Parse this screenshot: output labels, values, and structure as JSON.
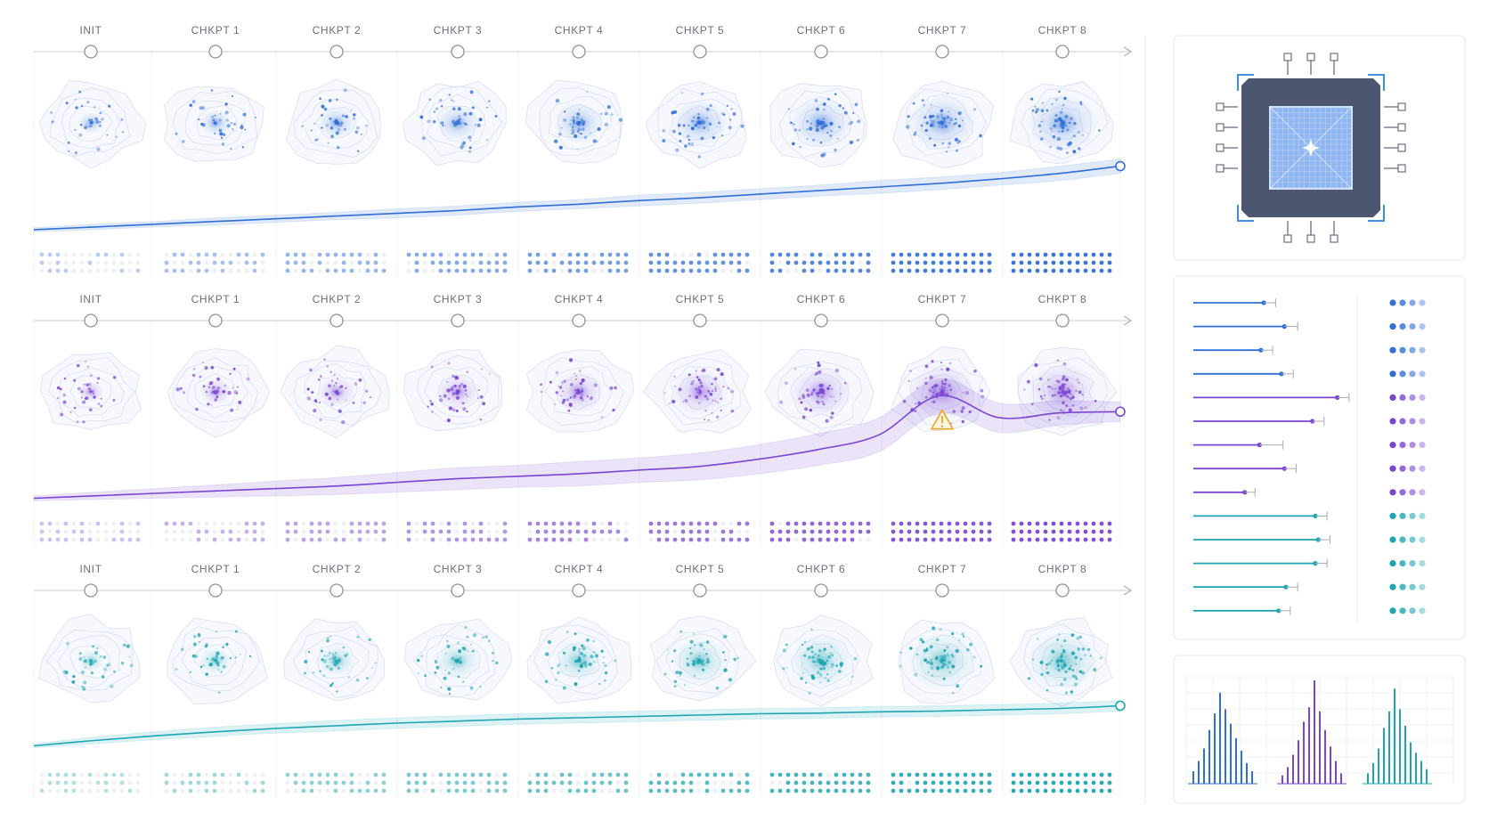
{
  "colors": {
    "blue": "#2f6fd6",
    "purple": "#7b45d3",
    "teal": "#1ea5b3",
    "warning": "#f0a420",
    "grid": "#e4e7ee",
    "chip_body": "#4d5670",
    "chip_die": "#8fb6f3"
  },
  "icons": {
    "warning": "warning-icon",
    "chip": "chip-icon"
  },
  "chart_data": [
    {
      "type": "line",
      "title": "",
      "xlabel": "",
      "ylabel": "",
      "categories": [
        "INIT",
        "CHKPT 1",
        "CHKPT 2",
        "CHKPT 3",
        "CHKPT 4",
        "CHKPT 5",
        "CHKPT 6",
        "CHKPT 7",
        "CHKPT 8"
      ],
      "x": [
        0,
        0.5,
        1,
        1.5,
        2,
        2.5,
        3,
        3.5,
        4,
        4.5,
        5,
        5.5,
        6,
        6.5,
        7,
        7.5,
        8,
        8.5,
        9
      ],
      "series": [
        {
          "color": "blue",
          "values": [
            0.04,
            0.07,
            0.1,
            0.13,
            0.16,
            0.19,
            0.22,
            0.25,
            0.29,
            0.32,
            0.36,
            0.39,
            0.43,
            0.47,
            0.51,
            0.55,
            0.6,
            0.66,
            0.74
          ],
          "band": [
            0.02,
            0.03,
            0.03,
            0.04,
            0.04,
            0.04,
            0.05,
            0.05,
            0.05,
            0.05,
            0.06,
            0.06,
            0.06,
            0.06,
            0.07,
            0.07,
            0.07,
            0.08,
            0.08
          ]
        }
      ],
      "ylim": [
        0,
        1
      ],
      "grid": true,
      "point_density": [
        0.25,
        0.35,
        0.45,
        0.55,
        0.65,
        0.75,
        0.85,
        0.95,
        1.0
      ]
    },
    {
      "type": "line",
      "title": "",
      "xlabel": "",
      "ylabel": "",
      "categories": [
        "INIT",
        "CHKPT 1",
        "CHKPT 2",
        "CHKPT 3",
        "CHKPT 4",
        "CHKPT 5",
        "CHKPT 6",
        "CHKPT 7",
        "CHKPT 8"
      ],
      "x": [
        0,
        0.5,
        1,
        1.5,
        2,
        2.5,
        3,
        3.5,
        4,
        4.5,
        5,
        5.5,
        6,
        6.5,
        7,
        7.5,
        8,
        8.5,
        9
      ],
      "series": [
        {
          "color": "purple",
          "values": [
            0.04,
            0.06,
            0.08,
            0.1,
            0.12,
            0.14,
            0.17,
            0.2,
            0.22,
            0.24,
            0.27,
            0.3,
            0.36,
            0.44,
            0.56,
            0.88,
            0.7,
            0.74,
            0.75
          ],
          "band": [
            0.02,
            0.03,
            0.04,
            0.05,
            0.06,
            0.07,
            0.08,
            0.09,
            0.09,
            0.1,
            0.1,
            0.11,
            0.12,
            0.13,
            0.14,
            0.14,
            0.12,
            0.1,
            0.08
          ]
        }
      ],
      "ylim": [
        0,
        1
      ],
      "grid": true,
      "annotations": [
        {
          "x": 7,
          "y": 0.55,
          "icon": "warning-icon"
        }
      ],
      "point_density": [
        0.25,
        0.35,
        0.45,
        0.55,
        0.65,
        0.75,
        0.85,
        0.95,
        1.0
      ]
    },
    {
      "type": "line",
      "title": "",
      "xlabel": "",
      "ylabel": "",
      "categories": [
        "INIT",
        "CHKPT 1",
        "CHKPT 2",
        "CHKPT 3",
        "CHKPT 4",
        "CHKPT 5",
        "CHKPT 6",
        "CHKPT 7",
        "CHKPT 8"
      ],
      "x": [
        0,
        0.5,
        1,
        1.5,
        2,
        2.5,
        3,
        3.5,
        4,
        4.5,
        5,
        5.5,
        6,
        6.5,
        7,
        7.5,
        8,
        8.5,
        9
      ],
      "series": [
        {
          "color": "teal",
          "values": [
            0.1,
            0.18,
            0.25,
            0.31,
            0.36,
            0.4,
            0.44,
            0.47,
            0.5,
            0.52,
            0.54,
            0.56,
            0.58,
            0.59,
            0.61,
            0.62,
            0.64,
            0.66,
            0.7
          ],
          "band": [
            0.03,
            0.05,
            0.06,
            0.07,
            0.07,
            0.08,
            0.08,
            0.08,
            0.08,
            0.08,
            0.08,
            0.08,
            0.08,
            0.08,
            0.08,
            0.08,
            0.08,
            0.08,
            0.08
          ]
        }
      ],
      "ylim": [
        0,
        1
      ],
      "grid": true,
      "point_density": [
        0.25,
        0.35,
        0.45,
        0.55,
        0.65,
        0.75,
        0.85,
        0.95,
        1.0
      ]
    },
    {
      "type": "bar",
      "orientation": "horizontal",
      "title": "",
      "values": [
        0.48,
        0.62,
        0.46,
        0.6,
        0.98,
        0.81,
        0.45,
        0.62,
        0.35,
        0.83,
        0.85,
        0.83,
        0.63,
        0.58
      ],
      "errors": [
        0.08,
        0.09,
        0.08,
        0.08,
        0.08,
        0.08,
        0.16,
        0.08,
        0.07,
        0.08,
        0.08,
        0.08,
        0.08,
        0.08
      ],
      "colors": [
        "blue",
        "blue",
        "blue",
        "blue",
        "purple",
        "purple",
        "purple",
        "purple",
        "purple",
        "teal",
        "teal",
        "teal",
        "teal",
        "teal"
      ],
      "xlim": [
        0,
        1.2
      ],
      "dot_markers": 4
    },
    {
      "type": "bar",
      "title": "",
      "series": [
        {
          "color": "blue",
          "values": [
            0.12,
            0.22,
            0.34,
            0.52,
            0.68,
            0.88,
            0.72,
            0.58,
            0.44,
            0.32,
            0.2,
            0.12
          ]
        },
        {
          "color": "purple",
          "values": [
            0.08,
            0.16,
            0.28,
            0.42,
            0.6,
            0.74,
            1.0,
            0.7,
            0.52,
            0.36,
            0.22,
            0.1
          ]
        },
        {
          "color": "teal",
          "values": [
            0.1,
            0.2,
            0.34,
            0.54,
            0.7,
            0.92,
            0.72,
            0.56,
            0.4,
            0.3,
            0.22,
            0.14
          ]
        }
      ],
      "ylim": [
        0,
        1
      ]
    }
  ]
}
